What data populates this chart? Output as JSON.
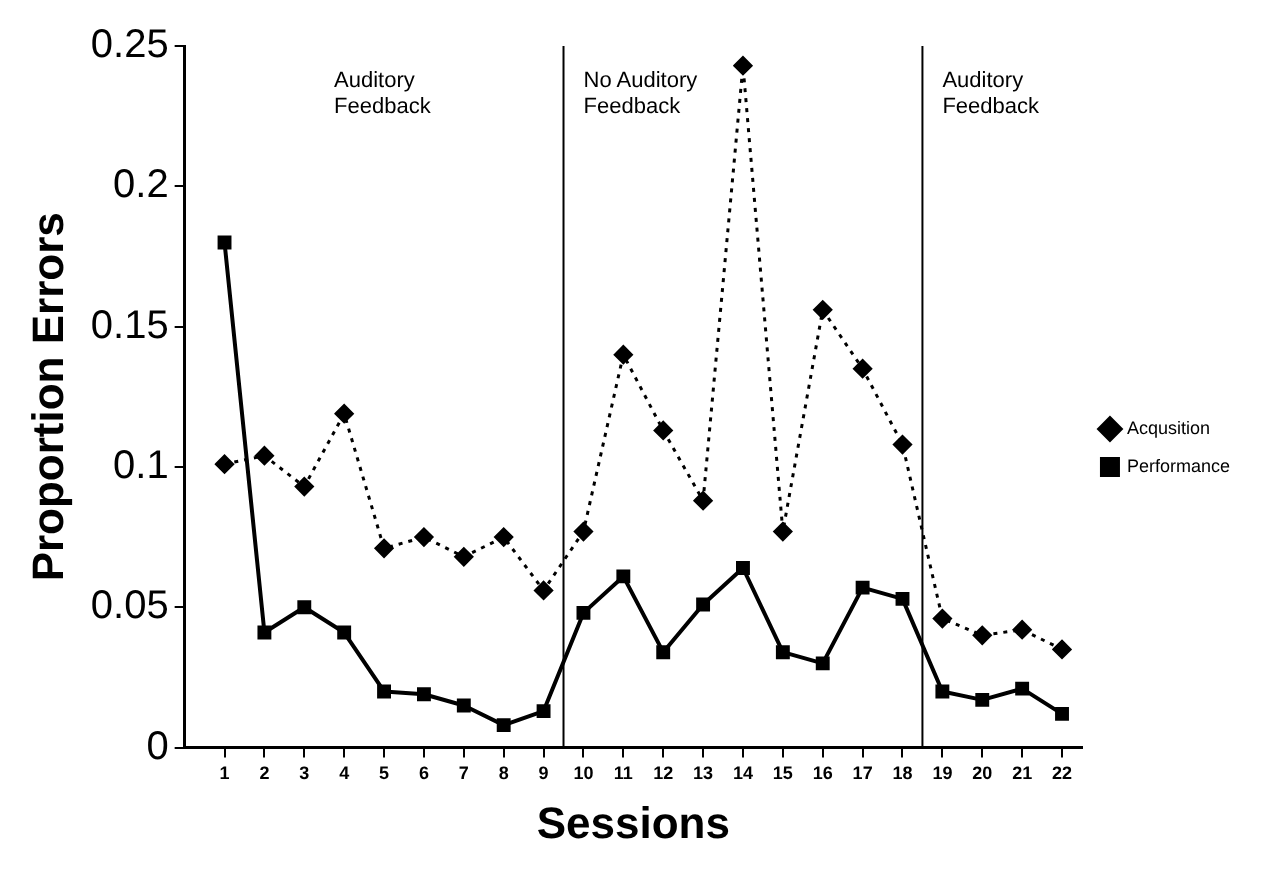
{
  "chart_data": {
    "type": "line",
    "xlabel": "Sessions",
    "ylabel": "Proportion Errors",
    "x": [
      1,
      2,
      3,
      4,
      5,
      6,
      7,
      8,
      9,
      10,
      11,
      12,
      13,
      14,
      15,
      16,
      17,
      18,
      19,
      20,
      21,
      22
    ],
    "series": [
      {
        "name": "Acqusition",
        "color": "#000000",
        "marker": "diamond",
        "line_style": "dotted",
        "values": [
          0.101,
          0.104,
          0.093,
          0.119,
          0.071,
          0.075,
          0.068,
          0.075,
          0.056,
          0.077,
          0.14,
          0.113,
          0.088,
          0.243,
          0.077,
          0.156,
          0.135,
          0.108,
          0.046,
          0.04,
          0.042,
          0.035
        ]
      },
      {
        "name": "Performance",
        "color": "#000000",
        "marker": "square",
        "line_style": "solid",
        "values": [
          0.18,
          0.041,
          0.05,
          0.041,
          0.02,
          0.019,
          0.015,
          0.008,
          0.013,
          0.048,
          0.061,
          0.034,
          0.051,
          0.064,
          0.034,
          0.03,
          0.057,
          0.053,
          0.02,
          0.017,
          0.021,
          0.012
        ]
      }
    ],
    "xlim": [
      0,
      22.5
    ],
    "xticks": [
      1,
      2,
      3,
      4,
      5,
      6,
      7,
      8,
      9,
      10,
      11,
      12,
      13,
      14,
      15,
      16,
      17,
      18,
      19,
      20,
      21,
      22
    ],
    "ylim": [
      0,
      0.25
    ],
    "yticks": [
      0,
      0.05,
      0.1,
      0.15,
      0.2,
      0.25
    ],
    "ref_lines": [
      {
        "axis": "x",
        "value": 9.5,
        "color": "#000000"
      },
      {
        "axis": "x",
        "value": 18.5,
        "color": "#000000"
      }
    ],
    "annotations": [
      "Auditory Feedback",
      "No Auditory Feedback",
      "Auditory Feedback"
    ],
    "grid": false,
    "legend": "right"
  }
}
